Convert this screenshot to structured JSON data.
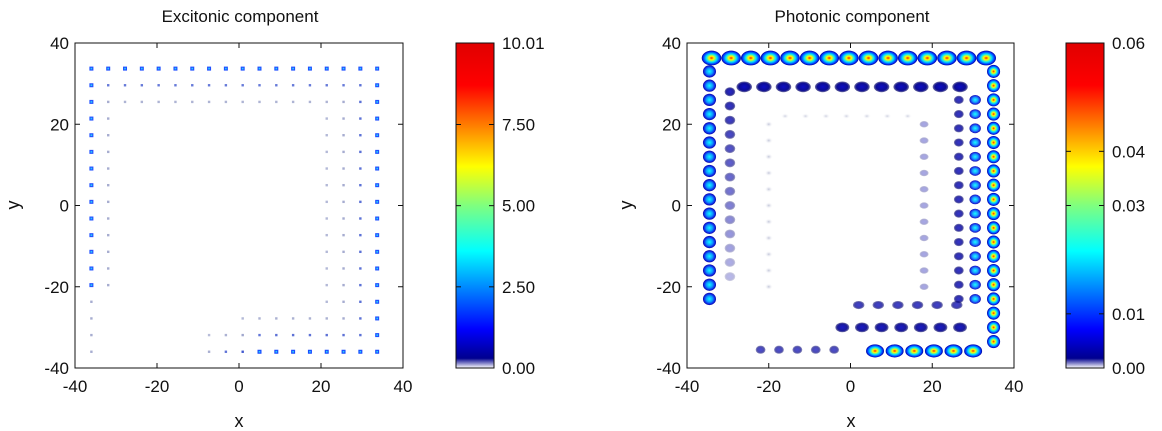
{
  "chart_data": [
    {
      "type": "heatmap",
      "title": "Excitonic component",
      "xlabel": "x",
      "ylabel": "y",
      "xlim": [
        -40,
        40
      ],
      "ylim": [
        -40,
        40
      ],
      "xticks": [
        "-40",
        "-20",
        "0",
        "20",
        "40"
      ],
      "yticks": [
        "40",
        "20",
        "0",
        "-20",
        "-40"
      ],
      "colorbar": {
        "min": 0.0,
        "max": 10.01,
        "ticks": [
          "10.01",
          "7.50",
          "5.00",
          "2.50",
          "0.00"
        ],
        "colormap": "jet"
      },
      "pattern": "sparse point lattice (spacing ~4) concentrated along top, left and right edges and bottom-right corner; interior nearly zero; max values ~1-2 (blue)"
    },
    {
      "type": "heatmap",
      "title": "Photonic component",
      "xlabel": "x",
      "ylabel": "y",
      "xlim": [
        -40,
        40
      ],
      "ylim": [
        -40,
        40
      ],
      "xticks": [
        "-40",
        "-20",
        "0",
        "20",
        "40"
      ],
      "yticks": [
        "40",
        "20",
        "0",
        "-20",
        "-40"
      ],
      "colorbar": {
        "min": 0.0,
        "max": 0.06,
        "ticks": [
          "0.06",
          "0.04",
          "0.03",
          "0.01",
          "0.00"
        ],
        "colormap": "jet"
      },
      "pattern": "edge-localized ring of blobs along the square boundary x,y in [-36,36]; brightest (~0.05) at top edge, right edge and bottom-right edge; weaker blobs on left edge and decaying inward stripes"
    }
  ]
}
